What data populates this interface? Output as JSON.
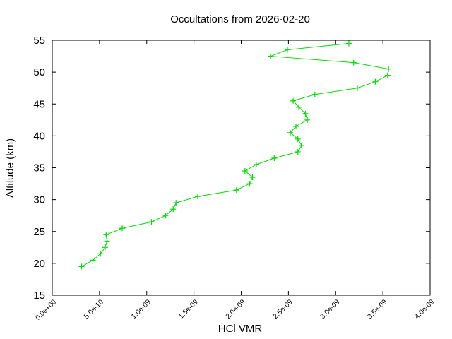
{
  "chart_data": {
    "type": "line",
    "title": "Occultations from 2026-02-20",
    "xlabel": "HCl VMR",
    "ylabel": "Altitude (km)",
    "xlim": [
      0,
      4e-09
    ],
    "ylim": [
      15,
      55
    ],
    "xticks": [
      "0.0e+00",
      "5.0e-10",
      "1.0e-09",
      "1.5e-09",
      "2.0e-09",
      "2.5e-09",
      "3.0e-09",
      "3.5e-09",
      "4.0e-09"
    ],
    "xtick_values": [
      0,
      5e-10,
      1e-09,
      1.5e-09,
      2e-09,
      2.5e-09,
      3e-09,
      3.5e-09,
      4e-09
    ],
    "yticks": [
      "15",
      "20",
      "25",
      "30",
      "35",
      "40",
      "45",
      "50",
      "55"
    ],
    "ytick_values": [
      15,
      20,
      25,
      30,
      35,
      40,
      45,
      50,
      55
    ],
    "grid": false,
    "legend": null,
    "series": [
      {
        "name": "HCl",
        "color": "#00dd00",
        "marker": "+",
        "x": [
          3.14e-09,
          2.49e-09,
          2.31e-09,
          3.19e-09,
          3.56e-09,
          3.55e-09,
          3.42e-09,
          3.23e-09,
          2.78e-09,
          2.55e-09,
          2.61e-09,
          2.68e-09,
          2.7e-09,
          2.58e-09,
          2.52e-09,
          2.6e-09,
          2.64e-09,
          2.6e-09,
          2.35e-09,
          2.16e-09,
          2.04e-09,
          2.12e-09,
          2.09e-09,
          1.95e-09,
          1.54e-09,
          1.31e-09,
          1.28e-09,
          1.2e-09,
          1.05e-09,
          7.4e-10,
          5.7e-10,
          5.8e-10,
          5.6e-10,
          5.1e-10,
          4.3e-10,
          3.1e-10
        ],
        "y": [
          54.5,
          53.5,
          52.5,
          51.5,
          50.5,
          49.5,
          48.5,
          47.5,
          46.5,
          45.5,
          44.5,
          43.5,
          42.5,
          41.5,
          40.5,
          39.5,
          38.5,
          37.5,
          36.5,
          35.5,
          34.5,
          33.5,
          32.5,
          31.5,
          30.5,
          29.5,
          28.5,
          27.5,
          26.5,
          25.5,
          24.5,
          23.5,
          22.5,
          21.5,
          20.5,
          19.5
        ]
      }
    ]
  }
}
